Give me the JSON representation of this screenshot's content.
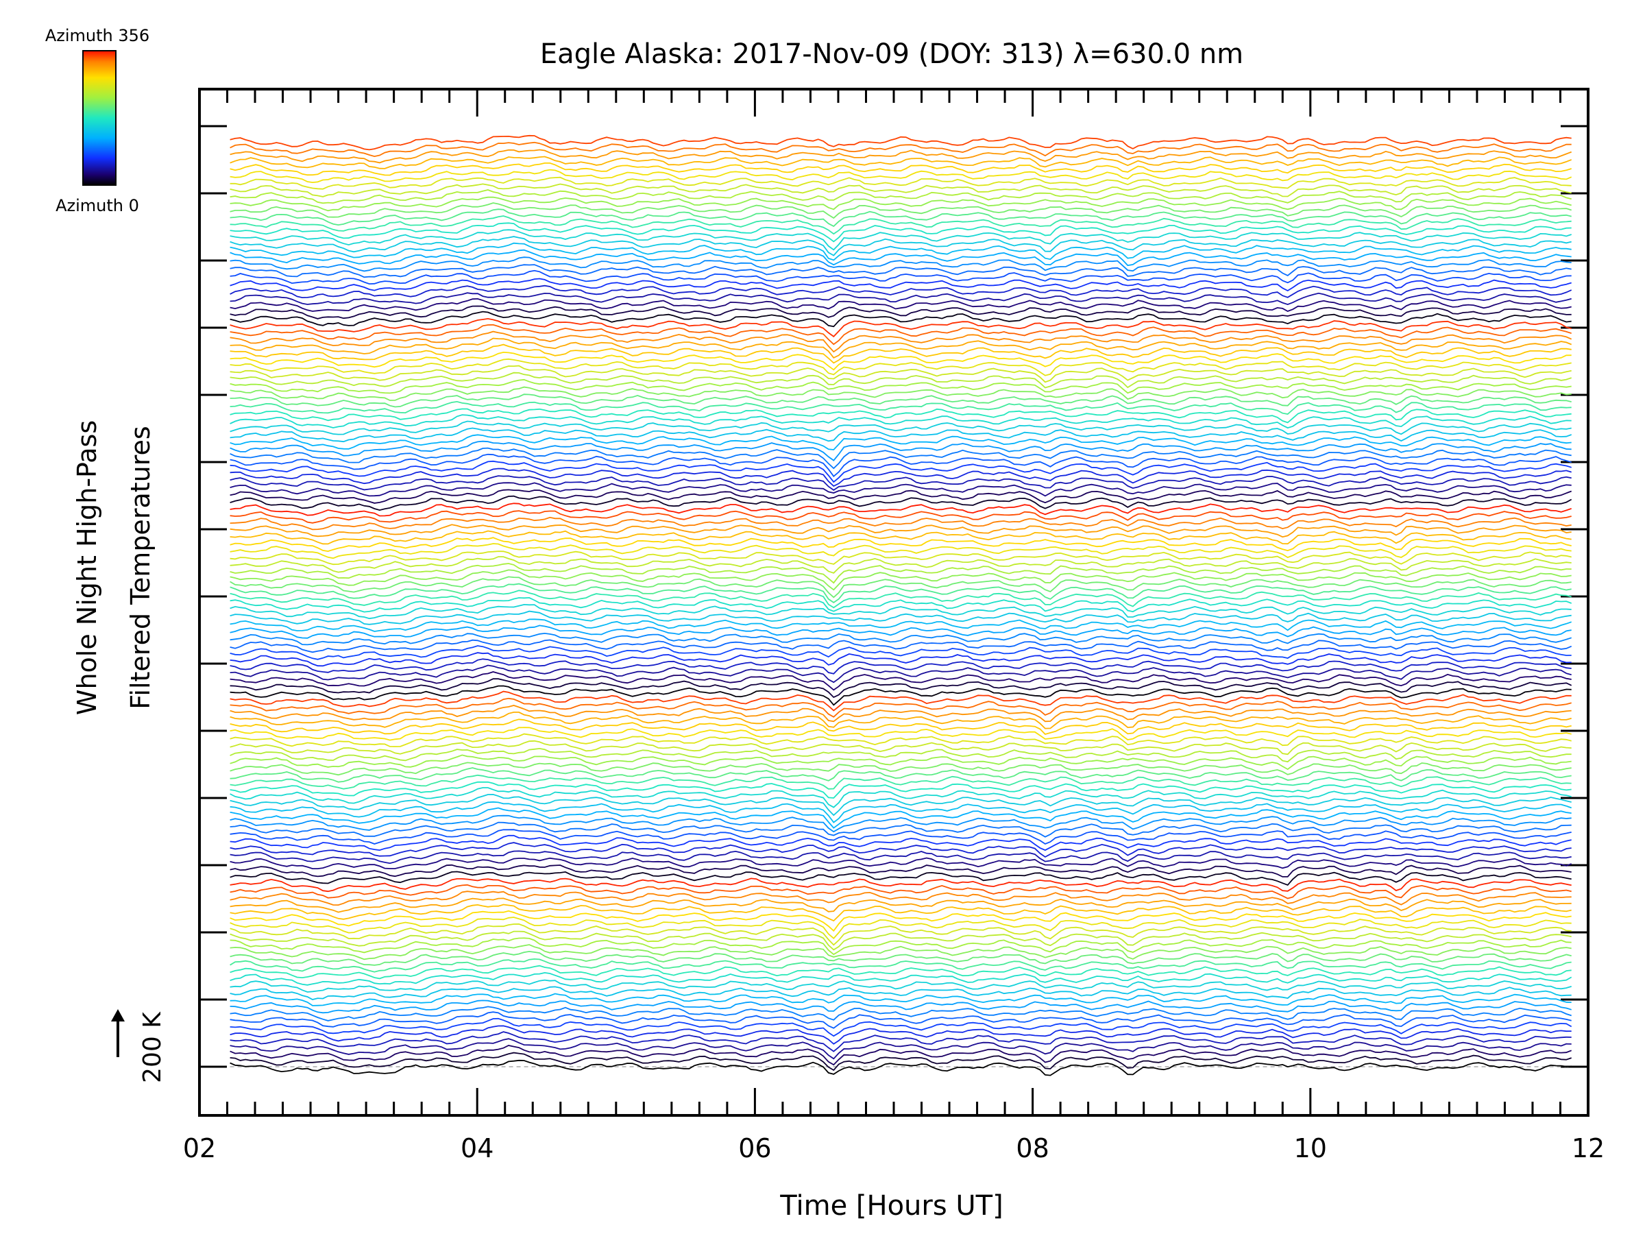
{
  "chart_data": {
    "type": "line",
    "title": "Eagle Alaska: 2017-Nov-09 (DOY: 313) λ=630.0 nm",
    "xlabel": "Time [Hours UT]",
    "ylabel_line1": "Whole Night High-Pass",
    "ylabel_line2": "Filtered Temperatures",
    "scale_bar_label": "200 K",
    "xlim": [
      2,
      12
    ],
    "x_tick_labels": [
      "02",
      "04",
      "06",
      "08",
      "10",
      "12"
    ],
    "x_tick_values": [
      2,
      4,
      6,
      8,
      10,
      12
    ],
    "x_start": 2.22,
    "x_end": 11.88,
    "colorbar": {
      "top_label": "Azimuth 356",
      "bottom_label": "Azimuth 0",
      "min": 0,
      "max": 356
    },
    "stacked_traces": 137,
    "trace_groups": 5,
    "events_hours_ut": [
      6.55,
      8.1,
      8.7,
      9.85,
      10.65
    ],
    "colors": {
      "azimuth_0": "#000000",
      "azimuth_mid": "#20e0d0",
      "azimuth_356": "#ff2000",
      "baseline": "#aaaaaa"
    }
  }
}
